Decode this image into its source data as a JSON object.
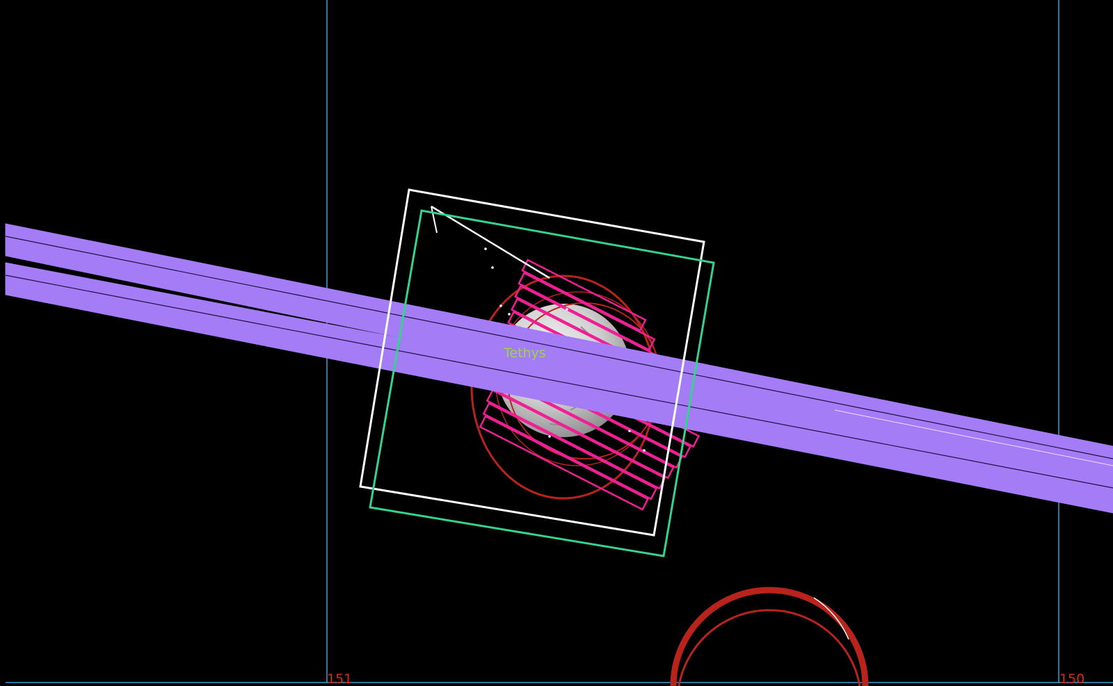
{
  "view": {
    "background_color": "#000000",
    "grid_line_color": "#3a9fd6",
    "grid_label_color": "#e0241b"
  },
  "grid": {
    "labels": [
      "151",
      "150"
    ]
  },
  "target": {
    "name": "Tethys",
    "label_color": "#9bd44a"
  },
  "footprint_colors": {
    "swath": "#a37cf6",
    "frame_white": "#ffffff",
    "frame_green": "#35d38e",
    "strips": "#f01f93",
    "rings": "#b8231c"
  }
}
